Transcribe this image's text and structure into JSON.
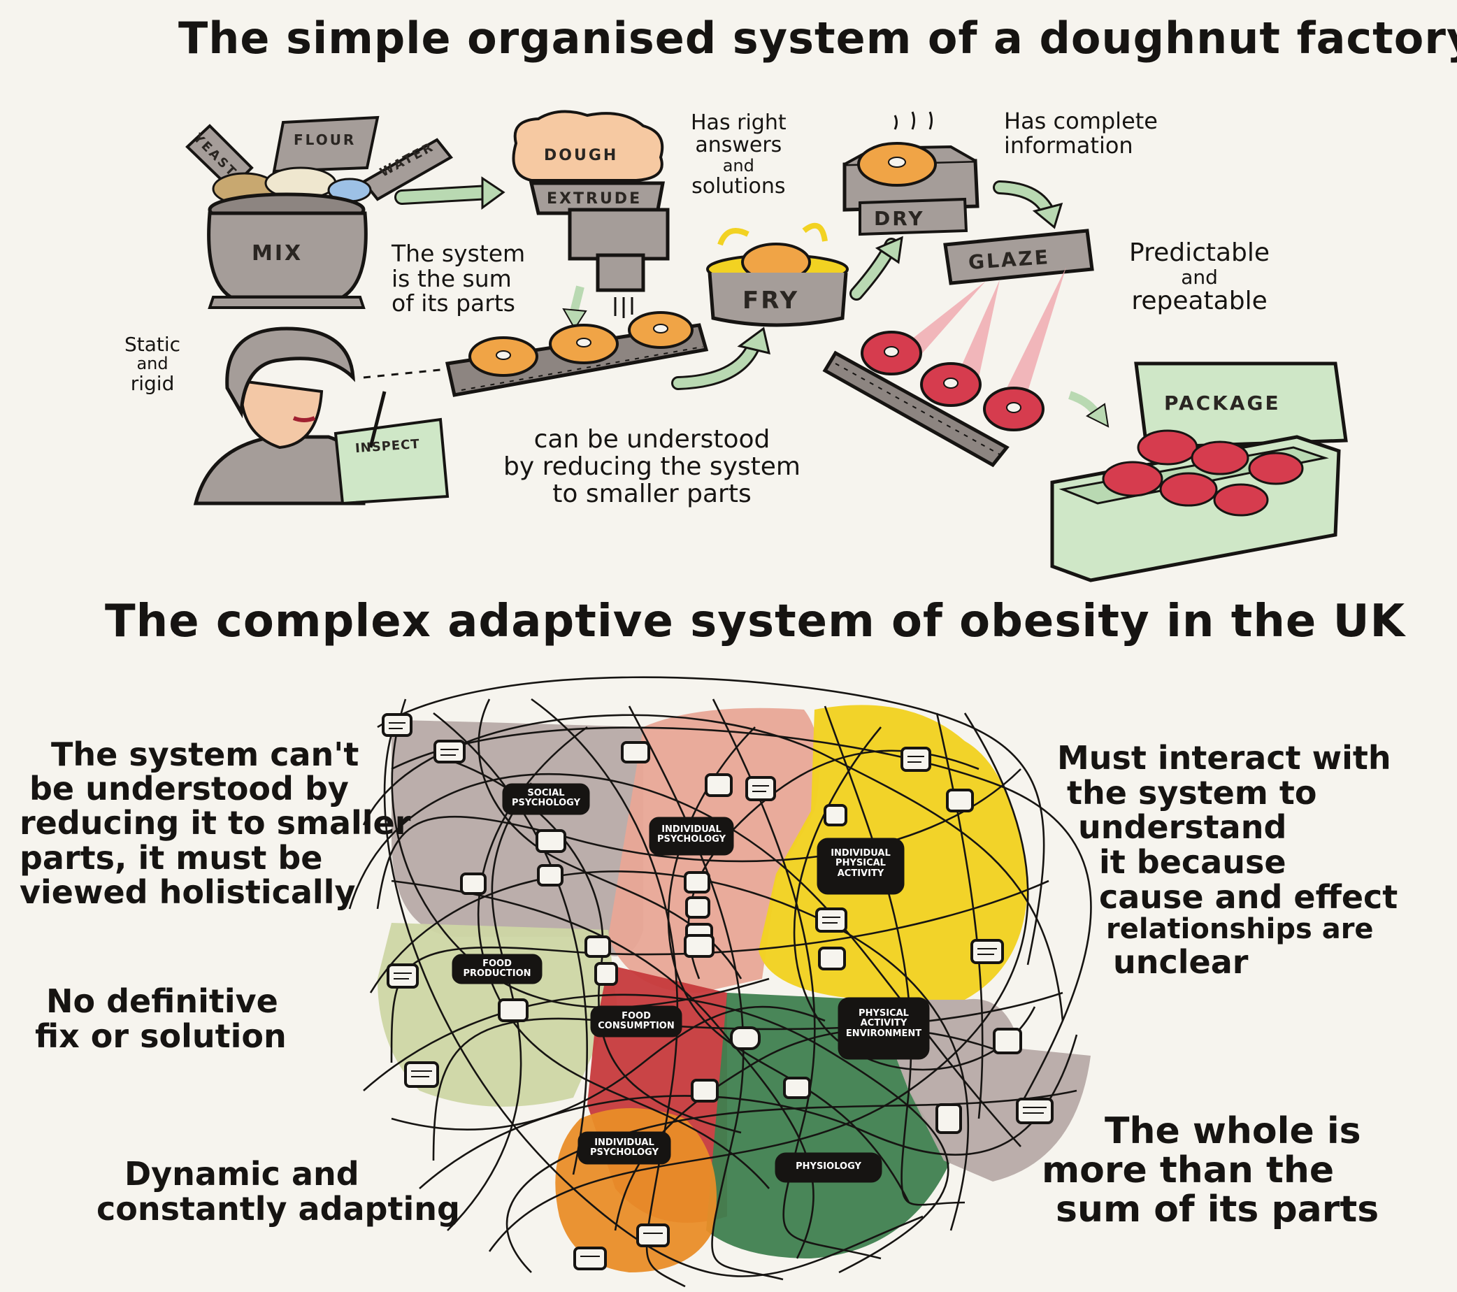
{
  "titles": {
    "simple": "The simple organised system of a doughnut factory",
    "complex": "The complex adaptive system of obesity in the UK"
  },
  "factory": {
    "stages": {
      "yeast": "YEAST",
      "flour": "FLOUR",
      "water": "WATER",
      "mix": "MIX",
      "dough": "DOUGH",
      "extrude": "EXTRUDE",
      "fry": "FRY",
      "dry": "DRY",
      "glaze": "GLAZE",
      "package": "PACKAGE",
      "inspect": "INSPECT"
    },
    "notes": {
      "right_answers": [
        "Has right",
        "answers",
        "and",
        "solutions"
      ],
      "complete_info": [
        "Has complete",
        "information"
      ],
      "sum_of_parts": [
        "The system",
        "is the sum",
        "of its parts"
      ],
      "predictable": [
        "Predictable",
        "and",
        "repeatable"
      ],
      "static": [
        "Static",
        "and",
        "rigid"
      ],
      "reducing": [
        "can be understood",
        "by reducing the system",
        "to smaller parts"
      ]
    }
  },
  "obesity": {
    "nodes": {
      "social": [
        "SOCIAL",
        "PSYCHOLOGY"
      ],
      "individual_psych_top": [
        "INDIVIDUAL",
        "PSYCHOLOGY"
      ],
      "individual_physical": [
        "INDIVIDUAL",
        "PHYSICAL",
        "ACTIVITY"
      ],
      "food_production": [
        "FOOD",
        "PRODUCTION"
      ],
      "food_consumption": [
        "FOOD",
        "CONSUMPTION"
      ],
      "physical_env": [
        "PHYSICAL",
        "ACTIVITY",
        "ENVIRONMENT"
      ],
      "individual_psych_bottom": [
        "INDIVIDUAL",
        "PSYCHOLOGY"
      ],
      "physiology": [
        "PHYSIOLOGY"
      ]
    },
    "notes": {
      "cant_understand": [
        "The system can't",
        "be understood by",
        "reducing it to smaller",
        "parts, it must be",
        "viewed holistically"
      ],
      "no_fix": [
        "No definitive",
        "fix or solution"
      ],
      "dynamic": [
        "Dynamic and",
        "constantly adapting"
      ],
      "interact": [
        "Must interact with",
        "the system to",
        "understand",
        "it because",
        "cause and effect",
        "relationships are",
        "unclear"
      ],
      "whole": [
        "The whole is",
        "more than the",
        "sum of its parts"
      ]
    }
  },
  "colors": {
    "paper": "#f6f4ee",
    "ink": "#161412",
    "machine_grey": "#a59d99",
    "dough": "#f6c9a2",
    "doughnut_orange": "#f0a446",
    "glaze_red": "#d63c4e",
    "arrow_green": "#b9d9b2",
    "inspect_green": "#cfe7c7",
    "region_grey": "#b7aaa6",
    "region_pink": "#e8a796",
    "region_yellow": "#f2d222",
    "region_lightgreen": "#cdd6a4",
    "region_red": "#c63a3c",
    "region_darkgreen": "#3f7f4f",
    "region_orange": "#e98d28"
  }
}
